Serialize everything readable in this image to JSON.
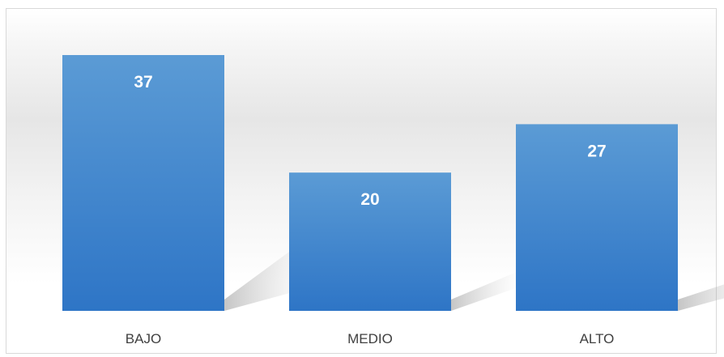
{
  "chart_data": {
    "type": "bar",
    "categories": [
      "BAJO",
      "MEDIO",
      "ALTO"
    ],
    "values": [
      37,
      20,
      27
    ],
    "data_labels": [
      "37",
      "20",
      "27"
    ],
    "title": "",
    "xlabel": "",
    "ylabel": "",
    "ylim": [
      0,
      37
    ],
    "grid": false,
    "legend": "none",
    "colors": {
      "bar_top": "#5b9bd5",
      "bar_bottom": "#2e75c6",
      "data_label": "#ffffff",
      "category_label": "#404040"
    }
  }
}
